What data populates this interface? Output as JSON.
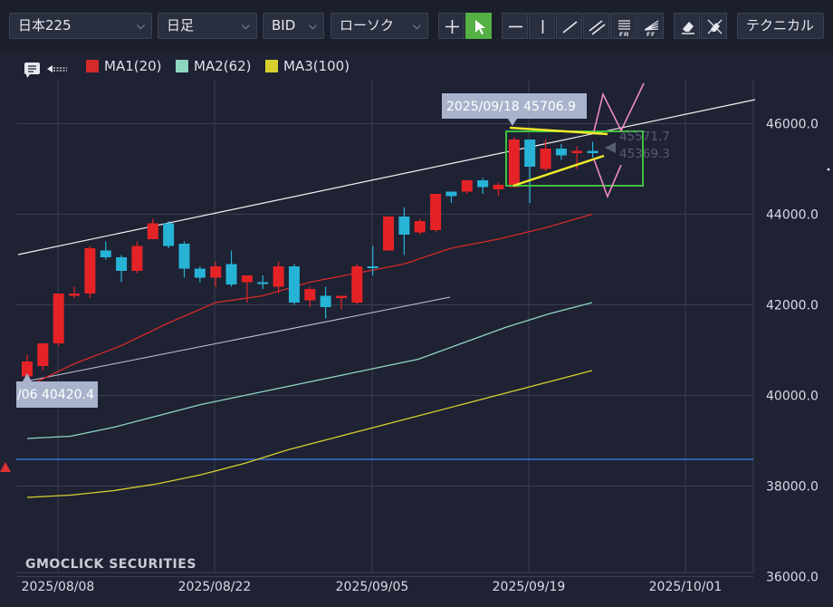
{
  "toolbar": {
    "symbol": "日本225",
    "timeframe": "日足",
    "price_type": "BID",
    "chart_style": "ローソク",
    "technical_label": "テクニカル",
    "tool_icons": [
      "crosshair-icon",
      "pointer-icon",
      "horizontal-line-icon",
      "vertical-line-icon",
      "trend-line-icon",
      "channel-icon",
      "fib-retracement-icon",
      "fib-fan-icon",
      "eraser-icon",
      "erase-all-icon"
    ],
    "active_tool": "pointer-icon",
    "colors": {
      "active": "#55b045",
      "background": "#1e2233"
    }
  },
  "legend": {
    "items": [
      {
        "label": "MA1(20)",
        "color": "#d42a2a"
      },
      {
        "label": "MA2(62)",
        "color": "#8fd6c0"
      },
      {
        "label": "MA3(100)",
        "color": "#d8cf2e"
      }
    ]
  },
  "annotations": {
    "high_label": "2025/09/18 45706.9",
    "low_label": "/06 40420.4",
    "value_upper": "45571.7",
    "value_lower": "45369.3",
    "watermark": "GMOCLICK SECURITIES"
  },
  "chart_data": {
    "type": "candlestick",
    "title": "",
    "x_labels": [
      "2025/08/08",
      "2025/08/22",
      "2025/09/05",
      "2025/09/19",
      "2025/10/01"
    ],
    "y_ticks": [
      36000,
      38000,
      40000,
      42000,
      44000,
      46000
    ],
    "y_tick_labels": [
      "36000.0",
      "38000.0",
      "40000.0",
      "42000.0",
      "44000.0",
      "46000.0"
    ],
    "ylim": [
      35950,
      46950
    ],
    "grid": true,
    "legend_position": "top-left",
    "candles": [
      {
        "date": "2025/08/05",
        "open": 40420,
        "high": 40900,
        "low": 40420,
        "close": 40750,
        "dir": "down"
      },
      {
        "date": "2025/08/06",
        "open": 41150,
        "high": 41150,
        "low": 40550,
        "close": 40650,
        "dir": "down"
      },
      {
        "date": "2025/08/07",
        "open": 42250,
        "high": 42250,
        "low": 41100,
        "close": 41150,
        "dir": "down"
      },
      {
        "date": "2025/08/08",
        "open": 42250,
        "high": 42400,
        "low": 42150,
        "close": 42200,
        "dir": "down"
      },
      {
        "date": "2025/08/12",
        "open": 43250,
        "high": 43300,
        "low": 42150,
        "close": 42250,
        "dir": "down"
      },
      {
        "date": "2025/08/13",
        "open": 43200,
        "high": 43400,
        "low": 43000,
        "close": 43050,
        "dir": "up"
      },
      {
        "date": "2025/08/14",
        "open": 42750,
        "high": 43100,
        "low": 42500,
        "close": 43050,
        "dir": "up"
      },
      {
        "date": "2025/08/15",
        "open": 43300,
        "high": 43400,
        "low": 42700,
        "close": 42750,
        "dir": "down"
      },
      {
        "date": "2025/08/18",
        "open": 43800,
        "high": 43900,
        "low": 43450,
        "close": 43450,
        "dir": "down"
      },
      {
        "date": "2025/08/19",
        "open": 43800,
        "high": 43850,
        "low": 43250,
        "close": 43300,
        "dir": "up"
      },
      {
        "date": "2025/08/20",
        "open": 42800,
        "high": 43400,
        "low": 42600,
        "close": 43350,
        "dir": "up"
      },
      {
        "date": "2025/08/21",
        "open": 42600,
        "high": 42850,
        "low": 42500,
        "close": 42800,
        "dir": "up"
      },
      {
        "date": "2025/08/22",
        "open": 42850,
        "high": 42950,
        "low": 42400,
        "close": 42600,
        "dir": "down"
      },
      {
        "date": "2025/08/25",
        "open": 42450,
        "high": 43200,
        "low": 42400,
        "close": 42900,
        "dir": "up"
      },
      {
        "date": "2025/08/26",
        "open": 42650,
        "high": 42650,
        "low": 42050,
        "close": 42500,
        "dir": "down"
      },
      {
        "date": "2025/08/27",
        "open": 42500,
        "high": 42650,
        "low": 42350,
        "close": 42500,
        "dir": "up"
      },
      {
        "date": "2025/08/28",
        "open": 42850,
        "high": 42950,
        "low": 42250,
        "close": 42400,
        "dir": "down"
      },
      {
        "date": "2025/08/29",
        "open": 42050,
        "high": 42900,
        "low": 42000,
        "close": 42850,
        "dir": "up"
      },
      {
        "date": "2025/09/01",
        "open": 42350,
        "high": 42400,
        "low": 41950,
        "close": 42100,
        "dir": "down"
      },
      {
        "date": "2025/09/02",
        "open": 41950,
        "high": 42400,
        "low": 41700,
        "close": 42200,
        "dir": "up"
      },
      {
        "date": "2025/09/03",
        "open": 42200,
        "high": 42200,
        "low": 41900,
        "close": 42150,
        "dir": "down"
      },
      {
        "date": "2025/09/04",
        "open": 42850,
        "high": 42900,
        "low": 42000,
        "close": 42050,
        "dir": "down"
      },
      {
        "date": "2025/09/05",
        "open": 42850,
        "high": 43300,
        "low": 42650,
        "close": 42850,
        "dir": "up"
      },
      {
        "date": "2025/09/08",
        "open": 43950,
        "high": 43950,
        "low": 43200,
        "close": 43200,
        "dir": "down"
      },
      {
        "date": "2025/09/09",
        "open": 43550,
        "high": 44150,
        "low": 43100,
        "close": 43950,
        "dir": "up"
      },
      {
        "date": "2025/09/10",
        "open": 43850,
        "high": 43900,
        "low": 43550,
        "close": 43600,
        "dir": "down"
      },
      {
        "date": "2025/09/11",
        "open": 44450,
        "high": 44450,
        "low": 43600,
        "close": 43650,
        "dir": "down"
      },
      {
        "date": "2025/09/12",
        "open": 44400,
        "high": 44500,
        "low": 44250,
        "close": 44500,
        "dir": "up"
      },
      {
        "date": "2025/09/15",
        "open": 44750,
        "high": 44750,
        "low": 44450,
        "close": 44500,
        "dir": "down"
      },
      {
        "date": "2025/09/16",
        "open": 44600,
        "high": 44800,
        "low": 44450,
        "close": 44750,
        "dir": "up"
      },
      {
        "date": "2025/09/17",
        "open": 44650,
        "high": 44700,
        "low": 44400,
        "close": 44550,
        "dir": "down"
      },
      {
        "date": "2025/09/18",
        "open": 45650,
        "high": 45706.9,
        "low": 44600,
        "close": 44600,
        "dir": "down"
      },
      {
        "date": "2025/09/19",
        "open": 45050,
        "high": 45650,
        "low": 44250,
        "close": 45650,
        "dir": "up"
      },
      {
        "date": "2025/09/22",
        "open": 45450,
        "high": 45650,
        "low": 44950,
        "close": 45000,
        "dir": "down"
      },
      {
        "date": "2025/09/24",
        "open": 45300,
        "high": 45550,
        "low": 45200,
        "close": 45450,
        "dir": "up"
      },
      {
        "date": "2025/09/25",
        "open": 45400,
        "high": 45500,
        "low": 45000,
        "close": 45350,
        "dir": "down"
      },
      {
        "date": "2025/09/26",
        "open": 45350,
        "high": 45600,
        "low": 45250,
        "close": 45400,
        "dir": "up"
      }
    ],
    "moving_averages": [
      {
        "name": "MA1(20)",
        "color": "#d42a2a",
        "values": [
          40200,
          40700,
          41100,
          41600,
          42050,
          42200,
          42500,
          42700,
          42900,
          43250,
          43450,
          43700,
          44000
        ]
      },
      {
        "name": "MA2(62)",
        "color": "#8fd6c0",
        "values": [
          39050,
          39100,
          39300,
          39550,
          39800,
          40000,
          40200,
          40400,
          40600,
          40800,
          41150,
          41500,
          41800,
          42050
        ]
      },
      {
        "name": "MA3(100)",
        "color": "#d8cf2e",
        "values": [
          37750,
          37800,
          37900,
          38050,
          38250,
          38500,
          38800,
          39050,
          39300,
          39550,
          39800,
          40050,
          40300,
          40550
        ]
      }
    ],
    "horizontal_line": 38450
  }
}
